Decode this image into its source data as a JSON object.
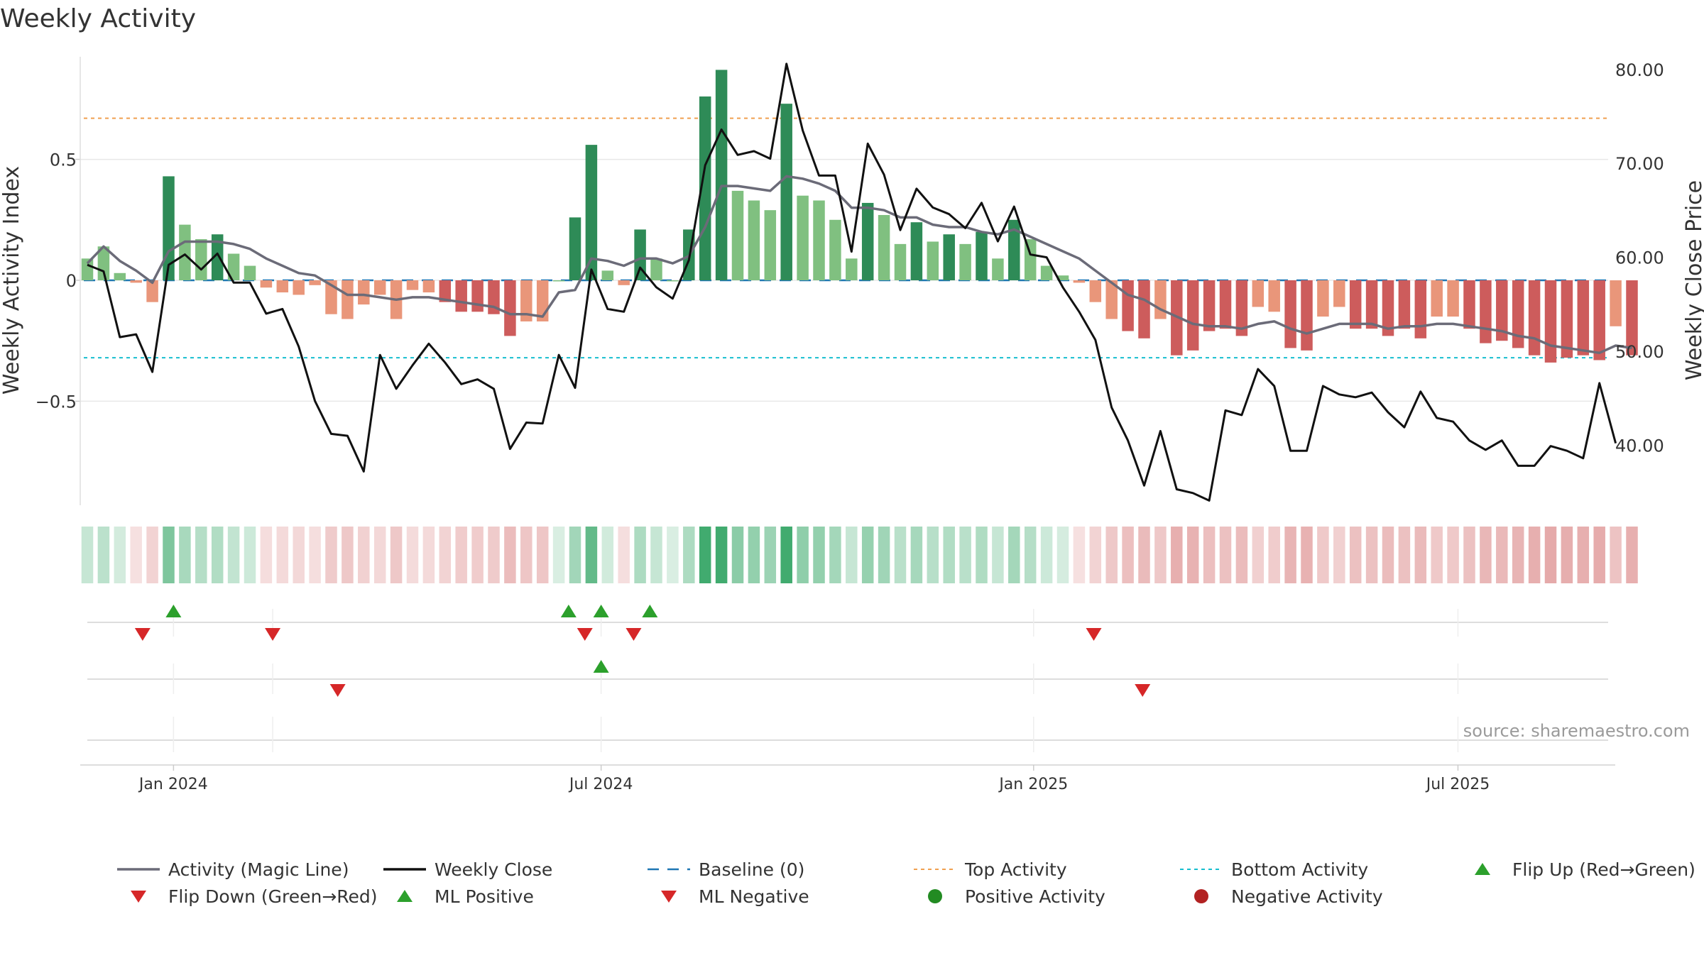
{
  "title": "Weekly Activity",
  "source": "source: sharemaestro.com",
  "colors": {
    "strong_green": "#2e8b57",
    "light_green": "#80c080",
    "strong_red": "#cd5c5c",
    "light_red": "#e9967a",
    "magic_line": "#6b6b78",
    "close": "#111111",
    "baseline": "#1f77b4",
    "top": "#f0a050",
    "bottom": "#17becf",
    "marker_green": "#2ca02c",
    "marker_red": "#d62728",
    "positive_dot": "#228b22",
    "negative_dot": "#b22222"
  },
  "chart_data": {
    "type": "bar",
    "weeks": 96,
    "x_ticks": [
      {
        "label": "Jan 2024",
        "week": 5.3
      },
      {
        "label": "Jul 2024",
        "week": 31.6
      },
      {
        "label": "Jan 2025",
        "week": 58.2
      },
      {
        "label": "Jul 2025",
        "week": 84.3
      }
    ],
    "y_left": {
      "label": "Weekly Activity Index",
      "range": [
        -0.93,
        0.93
      ],
      "ticks": [
        {
          "v": 0.5,
          "label": "0.5"
        },
        {
          "v": 0,
          "label": "0"
        },
        {
          "v": -0.5,
          "label": "−0.5"
        }
      ]
    },
    "y_right": {
      "label": "Weekly Close Price",
      "range": [
        33.6,
        81.5
      ],
      "ticks": [
        80,
        70,
        60,
        50,
        40
      ],
      "tick_labels": [
        "80.00",
        "70.00",
        "60.00",
        "50.00",
        "40.00"
      ]
    },
    "top_activity": 0.67,
    "bottom_activity": -0.32,
    "baseline": 0,
    "activity": [
      0.09,
      0.14,
      0.03,
      -0.01,
      -0.09,
      0.43,
      0.23,
      0.17,
      0.19,
      0.11,
      0.06,
      -0.03,
      -0.05,
      -0.06,
      -0.02,
      -0.14,
      -0.16,
      -0.1,
      -0.06,
      -0.16,
      -0.04,
      -0.05,
      -0.09,
      -0.13,
      -0.13,
      -0.14,
      -0.23,
      -0.17,
      -0.17,
      0.0,
      0.26,
      0.56,
      0.04,
      -0.02,
      0.21,
      0.09,
      0.0,
      0.21,
      0.76,
      0.87,
      0.37,
      0.33,
      0.29,
      0.73,
      0.35,
      0.33,
      0.25,
      0.09,
      0.32,
      0.27,
      0.15,
      0.24,
      0.16,
      0.19,
      0.15,
      0.2,
      0.09,
      0.25,
      0.17,
      0.06,
      0.02,
      -0.01,
      -0.09,
      -0.16,
      -0.21,
      -0.24,
      -0.16,
      -0.31,
      -0.29,
      -0.21,
      -0.2,
      -0.23,
      -0.11,
      -0.13,
      -0.28,
      -0.29,
      -0.15,
      -0.11,
      -0.2,
      -0.2,
      -0.23,
      -0.2,
      -0.24,
      -0.15,
      -0.15,
      -0.2,
      -0.26,
      -0.25,
      -0.28,
      -0.31,
      -0.34,
      -0.32,
      -0.31,
      -0.33,
      -0.19,
      -0.31
    ],
    "magic_line": [
      0.07,
      0.14,
      0.08,
      0.04,
      -0.01,
      0.12,
      0.16,
      0.16,
      0.16,
      0.15,
      0.13,
      0.09,
      0.06,
      0.03,
      0.02,
      -0.02,
      -0.06,
      -0.06,
      -0.07,
      -0.08,
      -0.07,
      -0.07,
      -0.08,
      -0.09,
      -0.1,
      -0.11,
      -0.14,
      -0.14,
      -0.15,
      -0.05,
      -0.04,
      0.09,
      0.08,
      0.06,
      0.09,
      0.09,
      0.07,
      0.1,
      0.22,
      0.39,
      0.39,
      0.38,
      0.37,
      0.43,
      0.42,
      0.4,
      0.37,
      0.3,
      0.3,
      0.29,
      0.26,
      0.26,
      0.23,
      0.22,
      0.22,
      0.2,
      0.19,
      0.21,
      0.18,
      0.15,
      0.12,
      0.09,
      0.04,
      -0.01,
      -0.06,
      -0.08,
      -0.12,
      -0.15,
      -0.18,
      -0.19,
      -0.19,
      -0.2,
      -0.18,
      -0.17,
      -0.2,
      -0.22,
      -0.2,
      -0.18,
      -0.18,
      -0.18,
      -0.2,
      -0.19,
      -0.19,
      -0.18,
      -0.18,
      -0.19,
      -0.2,
      -0.21,
      -0.23,
      -0.24,
      -0.27,
      -0.28,
      -0.29,
      -0.3,
      -0.27,
      -0.28
    ],
    "close": [
      59.2,
      58.5,
      51.5,
      51.8,
      47.8,
      59.2,
      60.3,
      58.7,
      60.4,
      57.3,
      57.3,
      54.0,
      54.5,
      50.5,
      44.7,
      41.2,
      41.0,
      37.2,
      49.6,
      46.0,
      48.5,
      50.8,
      48.8,
      46.5,
      47.0,
      46.0,
      39.6,
      42.4,
      42.3,
      49.6,
      46.1,
      58.7,
      54.5,
      54.2,
      58.9,
      56.8,
      55.6,
      59.7,
      69.8,
      73.6,
      70.9,
      71.3,
      70.5,
      80.6,
      73.5,
      68.7,
      68.7,
      60.6,
      72.1,
      68.8,
      62.9,
      67.3,
      65.3,
      64.6,
      63.1,
      65.8,
      61.7,
      65.4,
      60.3,
      60.0,
      56.8,
      54.2,
      51.2,
      44.0,
      40.5,
      35.7,
      41.5,
      35.3,
      34.9,
      32.9,
      43.7,
      43.2,
      48.1,
      46.3,
      39.4,
      39.4,
      46.3,
      45.4,
      45.1,
      45.6,
      43.5,
      41.9,
      45.7,
      42.9,
      42.5,
      40.5,
      39.5,
      40.5,
      37.8,
      37.8,
      39.9,
      39.4,
      38.6,
      46.6,
      40.2
    ],
    "flip_up_weeks": [
      5.3,
      29.6,
      31.6,
      34.6
    ],
    "flip_down_weeks": [
      3.4,
      11.4,
      30.6,
      33.6,
      61.9
    ],
    "ml_positive_weeks": [
      31.6
    ],
    "ml_negative_weeks": [
      15.4,
      64.9
    ],
    "legend": [
      "Activity (Magic Line)",
      "Weekly Close",
      "Baseline (0)",
      "Top Activity",
      "Bottom Activity",
      "Flip Up (Red→Green)",
      "Flip Down (Green→Red)",
      "ML Positive",
      "ML Negative",
      "Positive Activity",
      "Negative Activity"
    ]
  }
}
